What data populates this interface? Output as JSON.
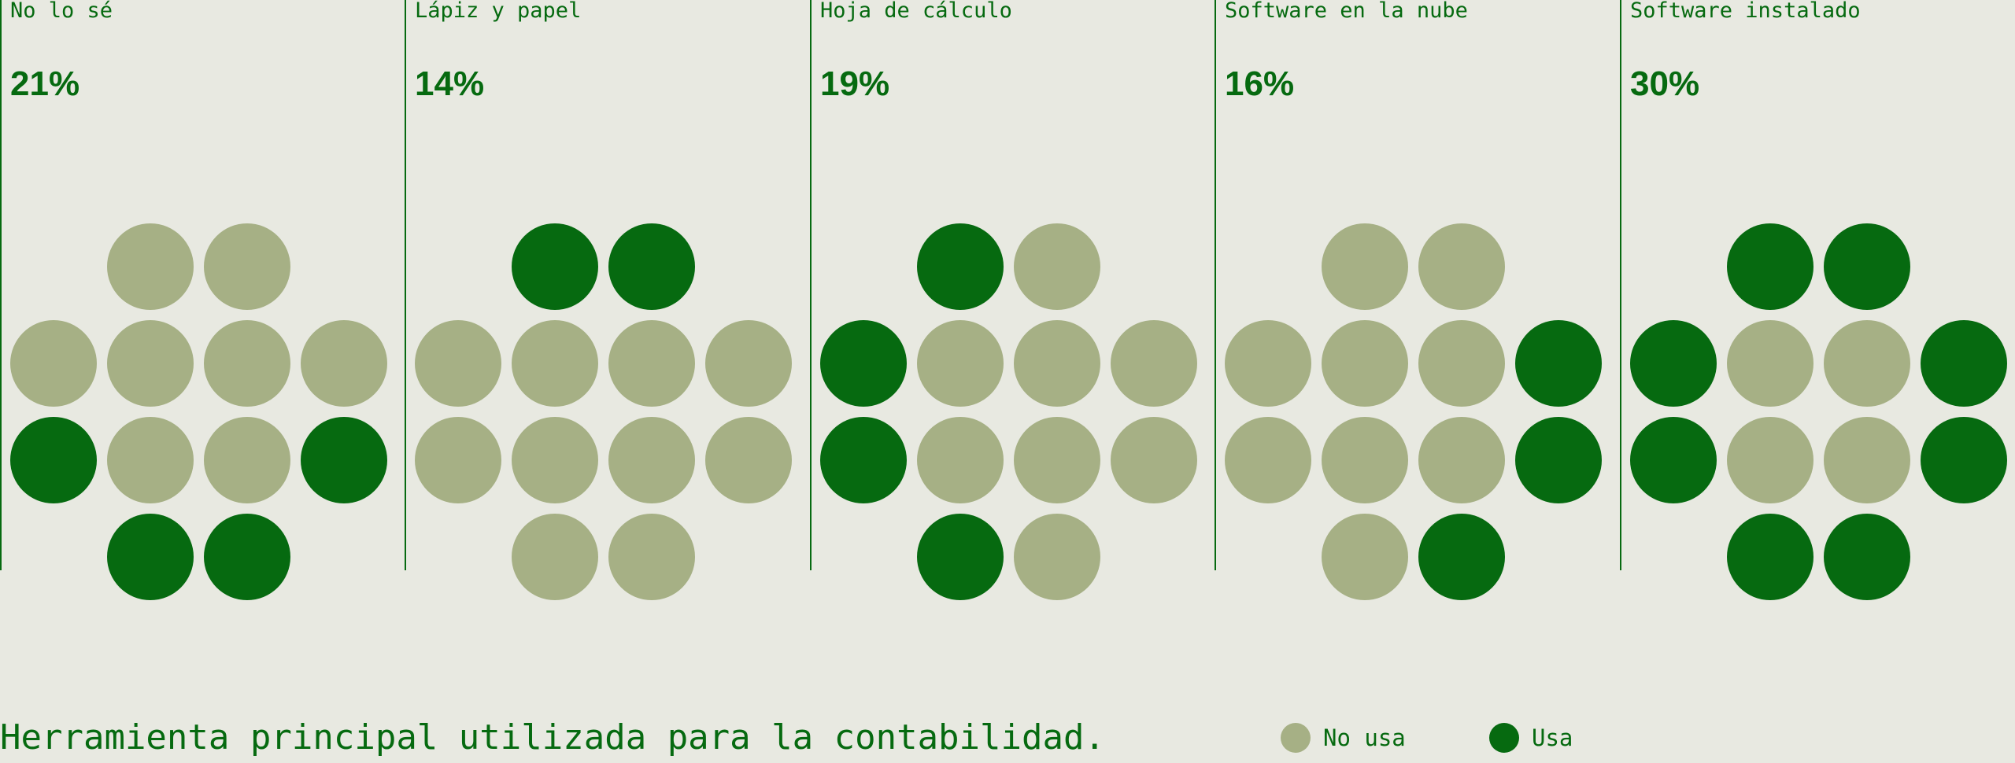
{
  "chart_data": {
    "type": "waffle",
    "title": "Herramienta principal utilizada para la contabilidad.",
    "legend": [
      {
        "label": "No usa",
        "color": "#a6b085"
      },
      {
        "label": "Usa",
        "color": "#066a10"
      }
    ],
    "legend_placement": "bottom-right",
    "dots_per_panel": 12,
    "categories": [
      {
        "label": "No lo sé",
        "percent_label": "21%",
        "value": 21,
        "pattern": [
          0,
          0,
          0,
          0,
          0,
          0,
          1,
          0,
          0,
          1,
          1,
          1
        ]
      },
      {
        "label": "Lápiz y papel",
        "percent_label": "14%",
        "value": 14,
        "pattern": [
          1,
          1,
          0,
          0,
          0,
          0,
          0,
          0,
          0,
          0,
          0,
          0
        ]
      },
      {
        "label": "Hoja de cálculo",
        "percent_label": "19%",
        "value": 19,
        "pattern": [
          1,
          0,
          1,
          0,
          0,
          0,
          1,
          0,
          0,
          0,
          1,
          0
        ]
      },
      {
        "label": "Software en la nube",
        "percent_label": "16%",
        "value": 16,
        "pattern": [
          0,
          0,
          0,
          0,
          0,
          1,
          0,
          0,
          0,
          1,
          0,
          1
        ]
      },
      {
        "label": "Software instalado",
        "percent_label": "30%",
        "value": 30,
        "pattern": [
          1,
          1,
          1,
          0,
          0,
          1,
          1,
          0,
          0,
          1,
          1,
          1
        ]
      }
    ]
  }
}
